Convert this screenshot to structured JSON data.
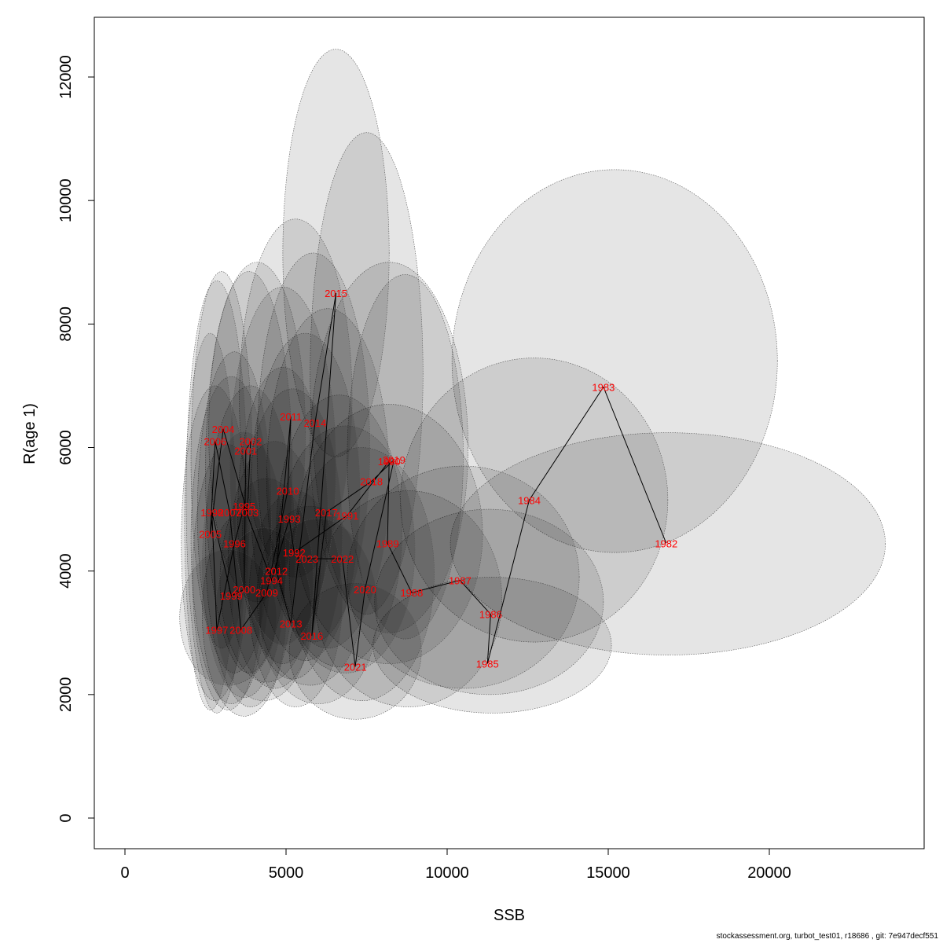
{
  "footer": "stockassessment.org, turbot_test01, r18686 , git: 7e947decf551",
  "colors": {
    "ellipse_fill": "#000000",
    "ellipse_stroke": "#555555",
    "label": "#ff0000",
    "line": "#000000"
  },
  "chart_data": {
    "type": "scatter",
    "title": "",
    "xlabel": "SSB",
    "ylabel": "R(age 1)",
    "xlim": [
      -1000,
      24800
    ],
    "ylim": [
      -500,
      13000
    ],
    "xticks": [
      0,
      5000,
      10000,
      15000,
      20000
    ],
    "yticks": [
      0,
      2000,
      4000,
      6000,
      8000,
      10000,
      12000
    ],
    "grid": false,
    "connected_path": true,
    "points": [
      {
        "year": "1982",
        "ssb": 16800,
        "r": 4450
      },
      {
        "year": "1983",
        "ssb": 14850,
        "r": 6980
      },
      {
        "year": "1984",
        "ssb": 12550,
        "r": 5150
      },
      {
        "year": "1985",
        "ssb": 11250,
        "r": 2500
      },
      {
        "year": "1986",
        "ssb": 11350,
        "r": 3300
      },
      {
        "year": "1987",
        "ssb": 10400,
        "r": 3850
      },
      {
        "year": "1988",
        "ssb": 8900,
        "r": 3650
      },
      {
        "year": "1989",
        "ssb": 8150,
        "r": 4450
      },
      {
        "year": "1990",
        "ssb": 8200,
        "r": 5780
      },
      {
        "year": "1991",
        "ssb": 6900,
        "r": 4900
      },
      {
        "year": "1992",
        "ssb": 5250,
        "r": 4300
      },
      {
        "year": "1993",
        "ssb": 5100,
        "r": 4850
      },
      {
        "year": "1994",
        "ssb": 4550,
        "r": 3850
      },
      {
        "year": "1995",
        "ssb": 3700,
        "r": 5050
      },
      {
        "year": "1996",
        "ssb": 3400,
        "r": 4450
      },
      {
        "year": "1997",
        "ssb": 2850,
        "r": 3050
      },
      {
        "year": "1998",
        "ssb": 2700,
        "r": 4950
      },
      {
        "year": "1999",
        "ssb": 3300,
        "r": 3600
      },
      {
        "year": "2000",
        "ssb": 3700,
        "r": 3700
      },
      {
        "year": "2001",
        "ssb": 3750,
        "r": 5950
      },
      {
        "year": "2002",
        "ssb": 3900,
        "r": 6100
      },
      {
        "year": "2003",
        "ssb": 3800,
        "r": 4950
      },
      {
        "year": "2004",
        "ssb": 3050,
        "r": 6300
      },
      {
        "year": "2005",
        "ssb": 2650,
        "r": 4600
      },
      {
        "year": "2006",
        "ssb": 2800,
        "r": 6100
      },
      {
        "year": "2007",
        "ssb": 3250,
        "r": 4950
      },
      {
        "year": "2008",
        "ssb": 3600,
        "r": 3050
      },
      {
        "year": "2009",
        "ssb": 4400,
        "r": 3650
      },
      {
        "year": "2010",
        "ssb": 5050,
        "r": 5300
      },
      {
        "year": "2011",
        "ssb": 5150,
        "r": 6500
      },
      {
        "year": "2012",
        "ssb": 4700,
        "r": 4000
      },
      {
        "year": "2013",
        "ssb": 5150,
        "r": 3150
      },
      {
        "year": "2014",
        "ssb": 5900,
        "r": 6400
      },
      {
        "year": "2015",
        "ssb": 6550,
        "r": 8500
      },
      {
        "year": "2016",
        "ssb": 5800,
        "r": 2950
      },
      {
        "year": "2017",
        "ssb": 6250,
        "r": 4950
      },
      {
        "year": "2018",
        "ssb": 7650,
        "r": 5450
      },
      {
        "year": "2019",
        "ssb": 8350,
        "r": 5800
      },
      {
        "year": "2020",
        "ssb": 7450,
        "r": 3700
      },
      {
        "year": "2021",
        "ssb": 7150,
        "r": 2450
      },
      {
        "year": "2022",
        "ssb": 6750,
        "r": 4200
      },
      {
        "year": "2023",
        "ssb": 5650,
        "r": 4200
      }
    ],
    "ellipses": [
      {
        "cx": 15200,
        "cy": 7400,
        "rx": 5050,
        "ry": 3100
      },
      {
        "cx": 16850,
        "cy": 4440,
        "rx": 6750,
        "ry": 1800
      },
      {
        "cx": 12700,
        "cy": 5150,
        "rx": 4150,
        "ry": 2300
      },
      {
        "cx": 11400,
        "cy": 2800,
        "rx": 3700,
        "ry": 1100
      },
      {
        "cx": 11300,
        "cy": 3500,
        "rx": 3550,
        "ry": 1500
      },
      {
        "cx": 10500,
        "cy": 3900,
        "rx": 3600,
        "ry": 1800
      },
      {
        "cx": 8800,
        "cy": 3550,
        "rx": 2900,
        "ry": 1750
      },
      {
        "cx": 8200,
        "cy": 4600,
        "rx": 2900,
        "ry": 2100
      },
      {
        "cx": 8200,
        "cy": 6000,
        "rx": 2450,
        "ry": 3000
      },
      {
        "cx": 8700,
        "cy": 5850,
        "rx": 1800,
        "ry": 2950
      },
      {
        "cx": 7500,
        "cy": 7200,
        "rx": 1750,
        "ry": 3900
      },
      {
        "cx": 6550,
        "cy": 9150,
        "rx": 1650,
        "ry": 3300
      },
      {
        "cx": 6650,
        "cy": 4650,
        "rx": 1950,
        "ry": 2200
      },
      {
        "cx": 7350,
        "cy": 3950,
        "rx": 2250,
        "ry": 2050
      },
      {
        "cx": 7150,
        "cy": 2700,
        "rx": 2050,
        "ry": 1100
      },
      {
        "cx": 6850,
        "cy": 4350,
        "rx": 2150,
        "ry": 2000
      },
      {
        "cx": 6300,
        "cy": 5500,
        "rx": 1900,
        "ry": 2750
      },
      {
        "cx": 5850,
        "cy": 6000,
        "rx": 1750,
        "ry": 3150
      },
      {
        "cx": 5750,
        "cy": 3600,
        "rx": 1650,
        "ry": 1450
      },
      {
        "cx": 5600,
        "cy": 5200,
        "rx": 1700,
        "ry": 2650
      },
      {
        "cx": 5300,
        "cy": 6800,
        "rx": 1750,
        "ry": 2900
      },
      {
        "cx": 5200,
        "cy": 4600,
        "rx": 1550,
        "ry": 2350
      },
      {
        "cx": 5300,
        "cy": 3550,
        "rx": 1450,
        "ry": 1750
      },
      {
        "cx": 4900,
        "cy": 4900,
        "rx": 1400,
        "ry": 2400
      },
      {
        "cx": 4650,
        "cy": 4100,
        "rx": 1450,
        "ry": 2000
      },
      {
        "cx": 4400,
        "cy": 3850,
        "rx": 1450,
        "ry": 1650
      },
      {
        "cx": 4100,
        "cy": 6250,
        "rx": 1500,
        "ry": 2750
      },
      {
        "cx": 3850,
        "cy": 5600,
        "rx": 1350,
        "ry": 3250
      },
      {
        "cx": 3900,
        "cy": 4400,
        "rx": 1400,
        "ry": 2600
      },
      {
        "cx": 3700,
        "cy": 3300,
        "rx": 1300,
        "ry": 1650
      },
      {
        "cx": 3400,
        "cy": 4950,
        "rx": 1150,
        "ry": 2600
      },
      {
        "cx": 3300,
        "cy": 4500,
        "rx": 1250,
        "ry": 2650
      },
      {
        "cx": 3200,
        "cy": 3900,
        "rx": 1100,
        "ry": 2150
      },
      {
        "cx": 3000,
        "cy": 5800,
        "rx": 950,
        "ry": 3050
      },
      {
        "cx": 2800,
        "cy": 4450,
        "rx": 1050,
        "ry": 2550
      },
      {
        "cx": 2850,
        "cy": 5200,
        "rx": 950,
        "ry": 3500
      },
      {
        "cx": 2650,
        "cy": 4800,
        "rx": 800,
        "ry": 3050
      },
      {
        "cx": 3200,
        "cy": 3250,
        "rx": 1500,
        "ry": 1100
      },
      {
        "cx": 3700,
        "cy": 4100,
        "rx": 1300,
        "ry": 2150
      },
      {
        "cx": 4300,
        "cy": 3300,
        "rx": 1500,
        "ry": 1400
      },
      {
        "cx": 6000,
        "cy": 3350,
        "rx": 1850,
        "ry": 1500
      },
      {
        "cx": 4900,
        "cy": 5700,
        "rx": 1650,
        "ry": 2900
      }
    ]
  }
}
